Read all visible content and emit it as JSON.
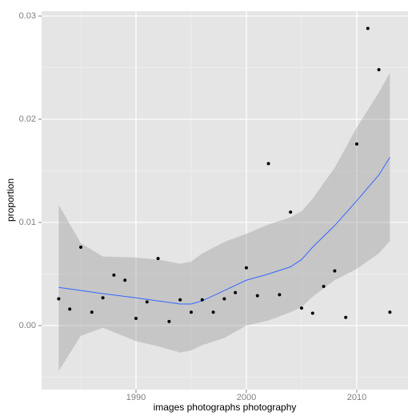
{
  "chart_data": {
    "type": "scatter",
    "x_label": "images photographs photography",
    "y_label": "proportion",
    "xlim": [
      1981.45,
      2014.64
    ],
    "ylim": [
      -0.0062,
      0.03047
    ],
    "xticks": [
      1990,
      2000,
      2010
    ],
    "yticks": [
      {
        "value": 0,
        "label": "0.00"
      },
      {
        "value": 0.01,
        "label": "0.01"
      },
      {
        "value": 0.02,
        "label": "0.02"
      },
      {
        "value": 0.03,
        "label": "0.03"
      }
    ],
    "grid": true,
    "point_color": "#000000",
    "x": [
      1983,
      1984,
      1985,
      1986,
      1987,
      1988,
      1989,
      1990,
      1991,
      1992,
      1993,
      1994,
      1995,
      1996,
      1997,
      1998,
      1999,
      2000,
      2001,
      2002,
      2003,
      2004,
      2005,
      2006,
      2007,
      2008,
      2009,
      2010,
      2011,
      2012,
      2013
    ],
    "values": [
      0.0026,
      0.0016,
      0.0076,
      0.0013,
      0.0027,
      0.0049,
      0.0044,
      0.0007,
      0.0023,
      0.0065,
      0.0004,
      0.0025,
      0.0013,
      0.0025,
      0.0013,
      0.0026,
      0.0032,
      0.0056,
      0.0029,
      0.0157,
      0.003,
      0.011,
      0.0017,
      0.0012,
      0.0038,
      0.0053,
      0.0008,
      0.0176,
      0.0288,
      0.0248,
      0.0013
    ],
    "smooth": {
      "color": "#3366ff",
      "band_color": "#999999",
      "x": [
        1983,
        1985,
        1987,
        1990,
        1992,
        1994,
        1995,
        1996,
        1998,
        2000,
        2002,
        2004,
        2005,
        2006,
        2008,
        2010,
        2012,
        2013
      ],
      "values": [
        0.0037,
        0.0034,
        0.0031,
        0.0027,
        0.0024,
        0.0021,
        0.0021,
        0.0024,
        0.0034,
        0.0044,
        0.005,
        0.0057,
        0.0064,
        0.0076,
        0.0097,
        0.0121,
        0.0146,
        0.0163
      ],
      "upper": [
        0.0117,
        0.008,
        0.0067,
        0.0066,
        0.0064,
        0.006,
        0.0062,
        0.007,
        0.0081,
        0.0089,
        0.0098,
        0.0105,
        0.0111,
        0.0123,
        0.0153,
        0.0192,
        0.0226,
        0.0245
      ],
      "lower": [
        -0.0044,
        -0.001,
        -0.0002,
        -0.0015,
        -0.002,
        -0.0026,
        -0.0024,
        -0.0019,
        -0.0012,
        0.0,
        0.0005,
        0.0013,
        0.0018,
        0.0028,
        0.0044,
        0.0055,
        0.007,
        0.0082
      ]
    }
  }
}
